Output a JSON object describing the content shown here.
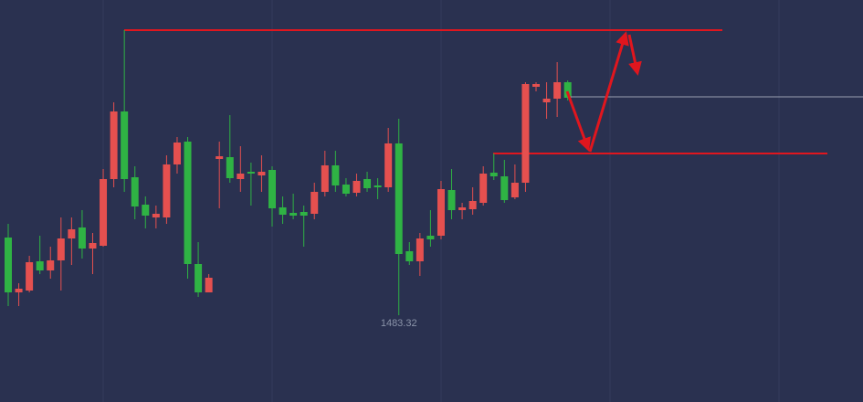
{
  "chart_data": {
    "type": "candlestick",
    "ylim": [
      1478.57,
      1500.57
    ],
    "up_color": "#e5504f",
    "down_color": "#2fb344",
    "open": [
      1487.57,
      1484.57,
      1484.67,
      1486.27,
      1485.77,
      1486.32,
      1487.52,
      1488.12,
      1486.97,
      1487.12,
      1490.77,
      1494.47,
      1490.87,
      1489.37,
      1488.67,
      1488.67,
      1491.57,
      1492.82,
      1486.12,
      1484.57,
      1491.87,
      1491.97,
      1490.77,
      1491.17,
      1490.97,
      1491.27,
      1489.22,
      1488.92,
      1488.97,
      1488.87,
      1490.07,
      1491.52,
      1490.47,
      1490.02,
      1490.77,
      1490.42,
      1490.32,
      1492.72,
      1486.82,
      1486.27,
      1487.67,
      1487.67,
      1490.17,
      1489.07,
      1489.12,
      1489.47,
      1491.12,
      1490.92,
      1489.77,
      1490.57,
      1495.82,
      1494.97,
      1495.17,
      1496.07
    ],
    "high": [
      1488.32,
      1485.07,
      1486.57,
      1487.67,
      1487.07,
      1488.67,
      1488.67,
      1489.07,
      1487.82,
      1491.32,
      1494.97,
      1498.92,
      1491.47,
      1489.82,
      1489.32,
      1492.07,
      1493.07,
      1493.07,
      1487.32,
      1485.57,
      1492.82,
      1494.27,
      1492.57,
      1491.67,
      1492.07,
      1491.47,
      1489.82,
      1489.97,
      1489.32,
      1490.57,
      1492.32,
      1492.32,
      1490.82,
      1491.07,
      1491.17,
      1490.82,
      1493.57,
      1494.07,
      1487.32,
      1487.82,
      1489.07,
      1490.67,
      1491.32,
      1489.47,
      1490.32,
      1491.47,
      1492.17,
      1491.82,
      1491.57,
      1496.07,
      1496.07,
      1496.07,
      1497.17,
      1496.17
    ],
    "low": [
      1483.82,
      1483.82,
      1484.57,
      1485.57,
      1485.32,
      1484.67,
      1486.07,
      1486.42,
      1485.57,
      1487.07,
      1490.32,
      1490.07,
      1488.57,
      1488.07,
      1488.07,
      1488.32,
      1491.07,
      1485.32,
      1484.32,
      1484.57,
      1489.17,
      1490.57,
      1490.07,
      1489.32,
      1490.07,
      1488.17,
      1488.32,
      1488.57,
      1487.07,
      1488.57,
      1489.82,
      1490.07,
      1489.82,
      1489.82,
      1490.07,
      1489.67,
      1490.07,
      1483.32,
      1486.07,
      1485.47,
      1487.07,
      1487.47,
      1488.57,
      1488.57,
      1488.82,
      1489.32,
      1490.72,
      1489.47,
      1489.67,
      1490.07,
      1495.57,
      1494.07,
      1494.17,
      1495.07
    ],
    "close": [
      1484.57,
      1484.77,
      1486.22,
      1485.77,
      1486.32,
      1487.52,
      1488.02,
      1486.97,
      1487.27,
      1490.77,
      1494.47,
      1490.77,
      1489.27,
      1488.77,
      1488.87,
      1491.57,
      1492.77,
      1486.12,
      1484.57,
      1485.37,
      1492.02,
      1490.82,
      1491.07,
      1491.07,
      1491.17,
      1489.17,
      1488.82,
      1488.77,
      1488.77,
      1490.07,
      1491.52,
      1490.42,
      1489.97,
      1490.67,
      1490.27,
      1490.32,
      1492.72,
      1486.67,
      1486.27,
      1487.52,
      1487.47,
      1490.22,
      1489.07,
      1489.22,
      1489.57,
      1491.07,
      1490.92,
      1489.62,
      1490.57,
      1495.97,
      1495.97,
      1495.17,
      1496.07,
      1495.22
    ],
    "low_label": 1483.32,
    "price_line": {
      "value": 1495.27,
      "color": "#9aa0b0"
    },
    "levels": [
      {
        "value": 1498.92,
        "color": "#e0161e"
      },
      {
        "value": 1492.17,
        "color": "#e0161e"
      }
    ]
  }
}
